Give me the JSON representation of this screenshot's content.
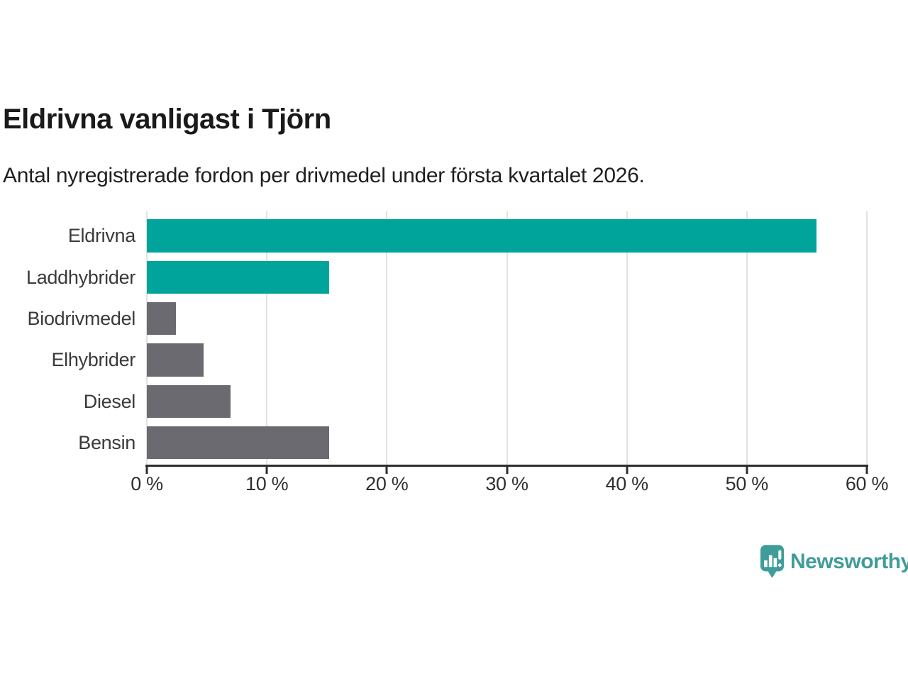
{
  "header": {
    "title": "Eldrivna vanligast i Tjörn",
    "subtitle": "Antal nyregistrerade fordon per drivmedel under första kvartalet 2026."
  },
  "chart_data": {
    "type": "bar",
    "orientation": "horizontal",
    "title": "Eldrivna vanligast i Tjörn",
    "subtitle": "Antal nyregistrerade fordon per drivmedel under första kvartalet 2026.",
    "categories": [
      "Eldrivna",
      "Laddhybrider",
      "Biodrivmedel",
      "Elhybrider",
      "Diesel",
      "Bensin"
    ],
    "values": [
      55.8,
      15.2,
      2.4,
      4.7,
      7.0,
      15.2
    ],
    "unit": "%",
    "xlim": [
      0,
      60
    ],
    "xticks": [
      0,
      10,
      20,
      30,
      40,
      50,
      60
    ],
    "xtick_labels": [
      "0 %",
      "10 %",
      "20 %",
      "30 %",
      "40 %",
      "50 %",
      "60 %"
    ],
    "bar_colors": [
      "#00A49A",
      "#00A49A",
      "#6B6A70",
      "#6B6A70",
      "#6B6A70",
      "#6B6A70"
    ],
    "grid": "vertical",
    "legend": "none"
  },
  "colors": {
    "accent_teal": "#00A49A",
    "bar_gray": "#6B6A70",
    "axis": "#2d2d2d",
    "gridline": "#e2e2e2",
    "brand_teal": "#3F9D99"
  },
  "footer": {
    "brand": "Newsworthy",
    "logo_icon": "speech-bubble-bar-chart-icon"
  }
}
